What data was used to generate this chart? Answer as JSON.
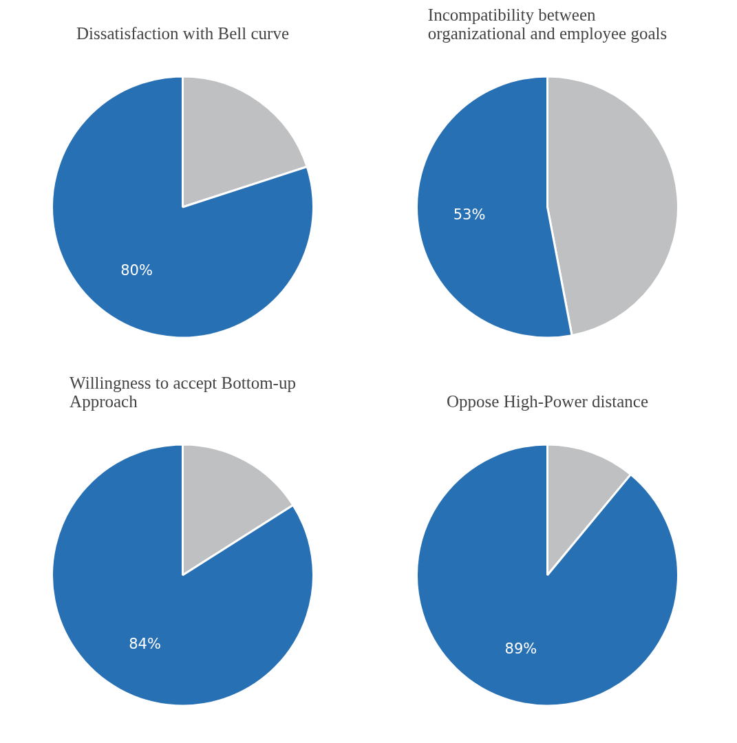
{
  "chart_data": [
    {
      "type": "pie",
      "title": "Dissatisfaction with Bell curve",
      "categories": [
        null,
        null
      ],
      "values": [
        20,
        80
      ],
      "colors": [
        "#bfc0c2",
        "#2870b4"
      ],
      "value_labels": [
        null,
        "80%"
      ]
    },
    {
      "type": "pie",
      "title": "Incompatibility between organizational and employee goals",
      "categories": [
        null,
        null
      ],
      "values": [
        47,
        53
      ],
      "colors": [
        "#bfc0c2",
        "#2870b4"
      ],
      "value_labels": [
        null,
        "53%"
      ]
    },
    {
      "type": "pie",
      "title": "Willingness to accept Bottom-up Approach",
      "categories": [
        null,
        null
      ],
      "values": [
        16,
        84
      ],
      "colors": [
        "#bfc0c2",
        "#2870b4"
      ],
      "value_labels": [
        null,
        "84%"
      ]
    },
    {
      "type": "pie",
      "title": "Oppose High-Power distance",
      "categories": [
        null,
        null
      ],
      "values": [
        11,
        89
      ],
      "colors": [
        "#bfc0c2",
        "#2870b4"
      ],
      "value_labels": [
        null,
        "89%"
      ]
    }
  ]
}
